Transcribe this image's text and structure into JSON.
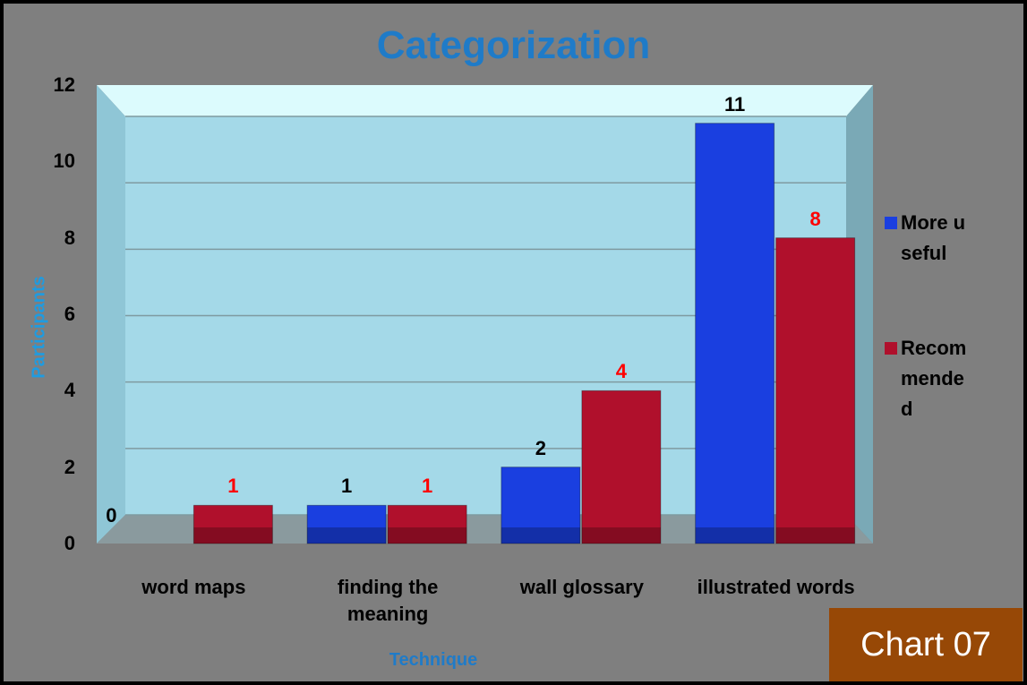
{
  "chart_data": {
    "type": "bar",
    "title": "Categorization",
    "x_label": "Technique",
    "y_label": "Participants",
    "badge": "Chart 07",
    "categories": [
      "word maps",
      "finding the meaning",
      "wall glossary",
      "illustrated words"
    ],
    "series": [
      {
        "name": "More useful",
        "color": "#1a3fe0",
        "label_color": "#000000",
        "values": [
          0,
          1,
          2,
          11
        ]
      },
      {
        "name": "Recommended",
        "color": "#b0102c",
        "label_color": "#ff0000",
        "values": [
          1,
          1,
          4,
          8
        ]
      }
    ],
    "ylim": [
      0,
      12
    ],
    "yticks": [
      0,
      2,
      4,
      6,
      8,
      10,
      12
    ],
    "grid": true,
    "legend": "right"
  }
}
